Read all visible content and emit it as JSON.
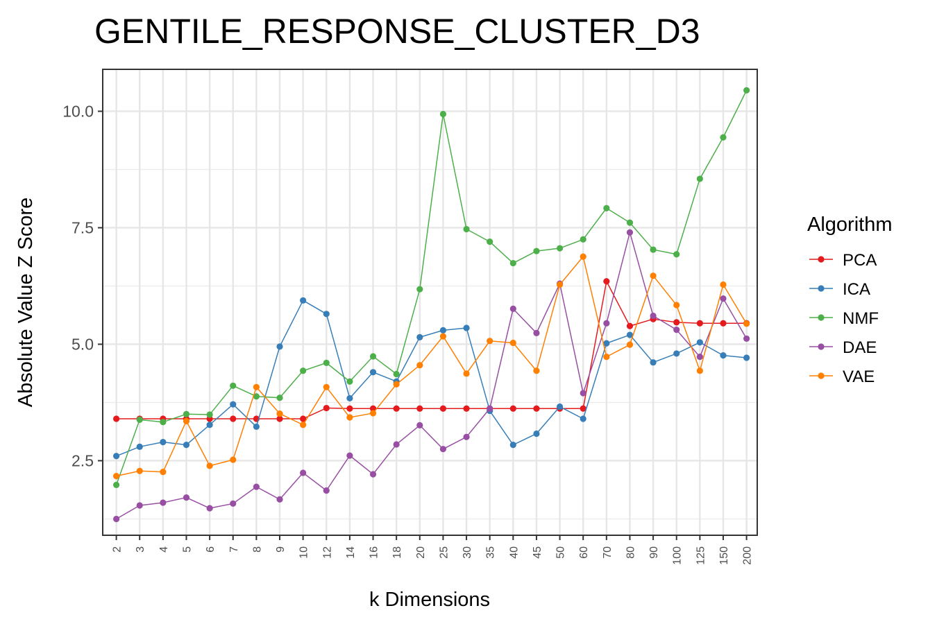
{
  "chart_data": {
    "type": "line",
    "title": "GENTILE_RESPONSE_CLUSTER_D3",
    "xlabel": "k Dimensions",
    "ylabel": "Absolute Value Z Score",
    "categories": [
      "2",
      "3",
      "4",
      "5",
      "6",
      "7",
      "8",
      "9",
      "10",
      "12",
      "14",
      "16",
      "18",
      "20",
      "25",
      "30",
      "35",
      "40",
      "45",
      "50",
      "60",
      "70",
      "80",
      "90",
      "100",
      "125",
      "150",
      "200"
    ],
    "ylim": [
      0.9,
      10.9
    ],
    "yticks": [
      2.5,
      5.0,
      7.5,
      10.0
    ],
    "ytick_labels": [
      "2.5",
      "5.0",
      "7.5",
      "10.0"
    ],
    "grid": true,
    "legend": {
      "title": "Algorithm",
      "position": "right"
    },
    "series": [
      {
        "name": "PCA",
        "color": "#e41a1c",
        "values": [
          3.4,
          3.4,
          3.4,
          3.4,
          3.4,
          3.4,
          3.4,
          3.4,
          3.4,
          3.63,
          3.62,
          3.62,
          3.62,
          3.62,
          3.62,
          3.62,
          3.62,
          3.62,
          3.62,
          3.62,
          3.62,
          6.35,
          5.39,
          5.54,
          5.47,
          5.45,
          5.45,
          5.45
        ]
      },
      {
        "name": "ICA",
        "color": "#377eb8",
        "values": [
          2.6,
          2.8,
          2.9,
          2.84,
          3.27,
          3.71,
          3.23,
          4.95,
          5.94,
          5.65,
          3.84,
          4.4,
          4.2,
          5.15,
          5.3,
          5.35,
          3.57,
          2.84,
          3.08,
          3.66,
          3.4,
          5.02,
          5.2,
          4.61,
          4.8,
          5.04,
          4.76,
          4.71
        ]
      },
      {
        "name": "NMF",
        "color": "#4daf4a",
        "values": [
          1.98,
          3.38,
          3.33,
          3.5,
          3.49,
          4.11,
          3.88,
          3.85,
          4.43,
          4.6,
          4.2,
          4.74,
          4.36,
          6.18,
          9.94,
          7.47,
          7.2,
          6.74,
          7.0,
          7.06,
          7.25,
          7.92,
          7.61,
          7.03,
          6.93,
          8.55,
          9.44,
          10.45
        ]
      },
      {
        "name": "DAE",
        "color": "#984ea3",
        "values": [
          1.25,
          1.54,
          1.6,
          1.71,
          1.48,
          1.58,
          1.94,
          1.67,
          2.24,
          1.86,
          2.61,
          2.21,
          2.85,
          3.26,
          2.75,
          3.01,
          3.62,
          5.76,
          5.24,
          6.3,
          3.95,
          5.45,
          7.4,
          5.61,
          5.31,
          4.73,
          5.98,
          5.12
        ]
      },
      {
        "name": "VAE",
        "color": "#ff7f00",
        "values": [
          2.17,
          2.28,
          2.26,
          3.35,
          2.39,
          2.52,
          4.08,
          3.51,
          3.27,
          4.08,
          3.43,
          3.52,
          4.14,
          4.55,
          5.17,
          4.37,
          5.07,
          5.03,
          4.43,
          6.28,
          6.88,
          4.73,
          4.99,
          6.47,
          5.84,
          4.43,
          6.28,
          5.44
        ]
      }
    ]
  }
}
